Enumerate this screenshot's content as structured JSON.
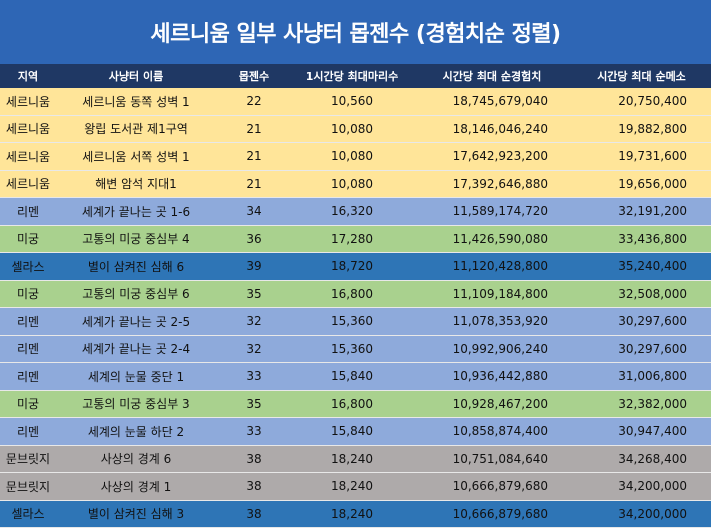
{
  "title": "세르니움 일부 사냥터 몹젠수 (경험치순 정렬)",
  "colors": {
    "title_bg": "#2e66b5",
    "header_bg": "#1f3864",
    "세르니움": "#ffe599",
    "리멘": "#8eaadb",
    "미궁": "#a9d18e",
    "셀라스": "#2e75b6",
    "문브릿지": "#aeaaaa"
  },
  "headers": [
    "지역",
    "사냥터 이름",
    "몹젠수",
    "1시간당 최대마리수",
    "시간당 최대 순경험치",
    "시간당 최대 순메소"
  ],
  "rows": [
    {
      "region": "세르니움",
      "name": "세르니움 동쪽 성벽 1",
      "spawn": "22",
      "per_hour": "10,560",
      "exp": "18,745,679,040",
      "meso": "20,750,400"
    },
    {
      "region": "세르니움",
      "name": "왕립 도서관 제1구역",
      "spawn": "21",
      "per_hour": "10,080",
      "exp": "18,146,046,240",
      "meso": "19,882,800"
    },
    {
      "region": "세르니움",
      "name": "세르니움 서쪽 성벽 1",
      "spawn": "21",
      "per_hour": "10,080",
      "exp": "17,642,923,200",
      "meso": "19,731,600"
    },
    {
      "region": "세르니움",
      "name": "해변 암석 지대1",
      "spawn": "21",
      "per_hour": "10,080",
      "exp": "17,392,646,880",
      "meso": "19,656,000"
    },
    {
      "region": "리멘",
      "name": "세계가 끝나는 곳 1-6",
      "spawn": "34",
      "per_hour": "16,320",
      "exp": "11,589,174,720",
      "meso": "32,191,200"
    },
    {
      "region": "미궁",
      "name": "고통의 미궁 중심부 4",
      "spawn": "36",
      "per_hour": "17,280",
      "exp": "11,426,590,080",
      "meso": "33,436,800"
    },
    {
      "region": "셀라스",
      "name": "별이 삼켜진 심해 6",
      "spawn": "39",
      "per_hour": "18,720",
      "exp": "11,120,428,800",
      "meso": "35,240,400"
    },
    {
      "region": "미궁",
      "name": "고통의 미궁 중심부 6",
      "spawn": "35",
      "per_hour": "16,800",
      "exp": "11,109,184,800",
      "meso": "32,508,000"
    },
    {
      "region": "리멘",
      "name": "세계가 끝나는 곳 2-5",
      "spawn": "32",
      "per_hour": "15,360",
      "exp": "11,078,353,920",
      "meso": "30,297,600"
    },
    {
      "region": "리멘",
      "name": "세계가 끝나는 곳 2-4",
      "spawn": "32",
      "per_hour": "15,360",
      "exp": "10,992,906,240",
      "meso": "30,297,600"
    },
    {
      "region": "리멘",
      "name": "세계의 눈물 중단 1",
      "spawn": "33",
      "per_hour": "15,840",
      "exp": "10,936,442,880",
      "meso": "31,006,800"
    },
    {
      "region": "미궁",
      "name": "고통의 미궁 중심부 3",
      "spawn": "35",
      "per_hour": "16,800",
      "exp": "10,928,467,200",
      "meso": "32,382,000"
    },
    {
      "region": "리멘",
      "name": "세계의 눈물 하단 2",
      "spawn": "33",
      "per_hour": "15,840",
      "exp": "10,858,874,400",
      "meso": "30,947,400"
    },
    {
      "region": "문브릿지",
      "name": "사상의 경계 6",
      "spawn": "38",
      "per_hour": "18,240",
      "exp": "10,751,084,640",
      "meso": "34,268,400"
    },
    {
      "region": "문브릿지",
      "name": "사상의 경계 1",
      "spawn": "38",
      "per_hour": "18,240",
      "exp": "10,666,879,680",
      "meso": "34,200,000"
    },
    {
      "region": "셀라스",
      "name": "별이 삼켜진 심해 3",
      "spawn": "38",
      "per_hour": "18,240",
      "exp": "10,666,879,680",
      "meso": "34,200,000"
    }
  ]
}
